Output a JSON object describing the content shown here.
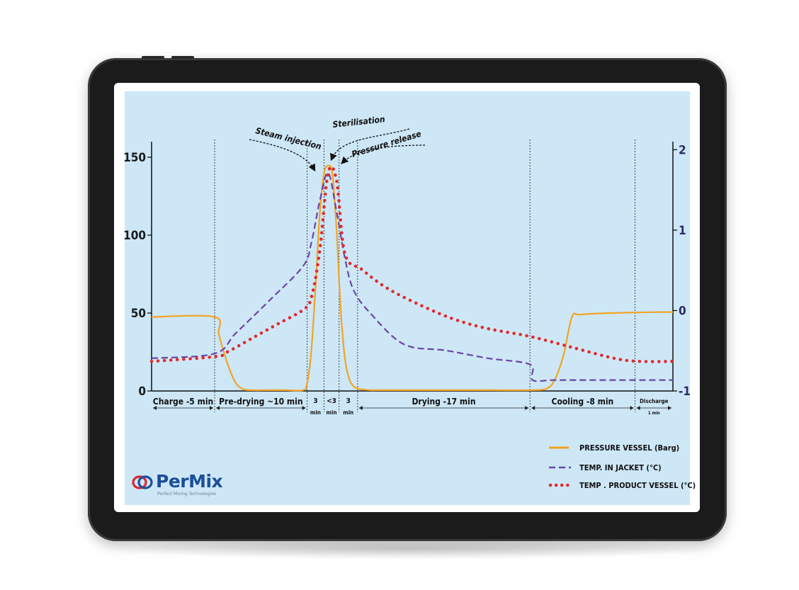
{
  "chart_data": {
    "type": "line",
    "y_left": {
      "ticks": [
        0,
        50,
        100,
        150
      ],
      "range": [
        0,
        160
      ]
    },
    "y_right": {
      "ticks": [
        -1,
        0,
        1,
        2
      ],
      "range": [
        -1,
        2.1
      ]
    },
    "x_range": [
      0,
      62
    ],
    "series": [
      {
        "name": "PRESSURE VESSEL (Barg)",
        "axis": "right",
        "style": "solid",
        "color": "#f3a321",
        "x": [
          0,
          7.5,
          8,
          9,
          10,
          11,
          12,
          14,
          16,
          18,
          18.5,
          19,
          19.5,
          20,
          20.5,
          21,
          21.5,
          22,
          22.5,
          23,
          23.5,
          24,
          24.5,
          25,
          26,
          27,
          28,
          30,
          40,
          45,
          47,
          48,
          49,
          50,
          51,
          55,
          60,
          62
        ],
        "y": [
          -0.08,
          -0.08,
          -0.3,
          -0.65,
          -0.9,
          -0.98,
          -0.99,
          -0.99,
          -0.99,
          -0.99,
          -0.9,
          -0.5,
          0.3,
          1.2,
          1.7,
          1.8,
          1.7,
          1.0,
          0.0,
          -0.6,
          -0.85,
          -0.94,
          -0.97,
          -0.98,
          -0.99,
          -0.99,
          -0.99,
          -0.99,
          -0.99,
          -0.99,
          -0.97,
          -0.85,
          -0.55,
          -0.08,
          -0.05,
          -0.03,
          -0.02,
          -0.02
        ]
      },
      {
        "name": "TEMP. IN JACKET (°C)",
        "axis": "left",
        "style": "dashed",
        "color": "#6a45a7",
        "x": [
          0,
          7.5,
          10,
          14,
          18,
          19,
          20,
          21,
          22,
          23,
          24,
          26,
          30,
          35,
          40,
          45,
          45.3,
          48,
          55,
          62
        ],
        "y": [
          21,
          24,
          37,
          58,
          80,
          95,
          122,
          140,
          115,
          85,
          65,
          50,
          30,
          26,
          21,
          17,
          7,
          7,
          7,
          7
        ]
      },
      {
        "name": "TEMP . PRODUCT VESSEL (°C)",
        "axis": "left",
        "style": "dotted",
        "color": "#e02a2a",
        "x": [
          0,
          7.5,
          9,
          12,
          15,
          18,
          19,
          20,
          21,
          22,
          23,
          25,
          28,
          32,
          36,
          40,
          45,
          50,
          55,
          58,
          62
        ],
        "y": [
          19,
          22,
          25,
          34,
          43,
          52,
          60,
          90,
          140,
          135,
          88,
          78,
          66,
          55,
          46,
          40,
          35,
          28,
          21,
          19,
          19
        ]
      }
    ],
    "phases": [
      {
        "label": "Charge -5 min",
        "start": 0,
        "end": 7.5
      },
      {
        "label": "Pre-drying ~10 min",
        "start": 7.5,
        "end": 18.5
      },
      {
        "label": "3",
        "sub": "min",
        "start": 18.5,
        "end": 20.5
      },
      {
        "label": "<3",
        "sub": "min",
        "start": 20.5,
        "end": 22.3
      },
      {
        "label": "3",
        "sub": "min",
        "start": 22.3,
        "end": 24.5
      },
      {
        "label": "Drying -17 min",
        "start": 24.5,
        "end": 45
      },
      {
        "label": "Cooling -8 min",
        "start": 45,
        "end": 57.5
      },
      {
        "label": "Discharge",
        "sub": "1 min",
        "start": 57.5,
        "end": 62
      }
    ],
    "annotations": [
      {
        "label": "Steam injection"
      },
      {
        "label": "Sterilisation"
      },
      {
        "label": "Pressure release"
      }
    ],
    "legend_position": "bottom-right",
    "grid": false
  },
  "brand": {
    "name": "PerMix",
    "tagline": "Perfect Mixing Technologies"
  }
}
